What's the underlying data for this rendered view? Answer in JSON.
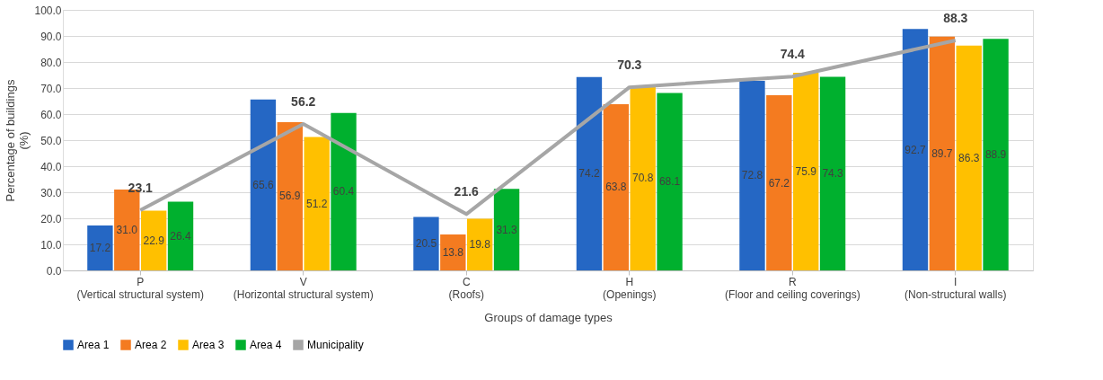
{
  "chart_data": {
    "type": "bar",
    "xlabel": "Groups of damage types",
    "ylabel": "Percentage of buildings\n(%)",
    "categories": [
      "P\n(Vertical structural system)",
      "V\n(Horizontal structural system)",
      "C\n(Roofs)",
      "H\n(Openings)",
      "R\n(Floor and ceiling coverings)",
      "I\n(Non-structural walls)"
    ],
    "series": [
      {
        "name": "Area 1",
        "color": "#2567c4",
        "values": [
          17.2,
          65.6,
          20.5,
          74.2,
          72.8,
          92.7
        ],
        "value_labels": [
          "17.2",
          "65.6",
          "20.5",
          "74.2",
          "72.8",
          "92.7"
        ]
      },
      {
        "name": "Area 2",
        "color": "#f47b20",
        "values": [
          31.0,
          56.9,
          13.8,
          63.8,
          67.2,
          89.7
        ],
        "value_labels": [
          "31.0",
          "56.9",
          "13.8",
          "63.8",
          "67.2",
          "89.7"
        ]
      },
      {
        "name": "Area 3",
        "color": "#ffc000",
        "values": [
          22.9,
          51.2,
          19.8,
          70.8,
          75.9,
          86.3
        ],
        "value_labels": [
          "22.9",
          "51.2",
          "19.8",
          "70.8",
          "75.9",
          "86.3"
        ]
      },
      {
        "name": "Area 4",
        "color": "#00b02e",
        "values": [
          26.4,
          60.4,
          31.3,
          68.1,
          74.3,
          88.9
        ],
        "value_labels": [
          "26.4",
          "60.4",
          "31.3",
          "68.1",
          "74.3",
          "88.9"
        ]
      },
      {
        "name": "Municipality",
        "type": "line",
        "color": "#a6a6a6",
        "values": [
          23.1,
          56.2,
          21.6,
          70.3,
          74.4,
          88.3
        ],
        "value_labels": [
          "23.1",
          "56.2",
          "21.6",
          "70.3",
          "74.4",
          "88.3"
        ]
      }
    ],
    "ylim": [
      0,
      100
    ],
    "yticks": [
      {
        "value": 0,
        "label": "0.0"
      },
      {
        "value": 10,
        "label": "10.0"
      },
      {
        "value": 20,
        "label": "20.0"
      },
      {
        "value": 30,
        "label": "30.0"
      },
      {
        "value": 40,
        "label": "40.0"
      },
      {
        "value": 50,
        "label": "50.0"
      },
      {
        "value": 60,
        "label": "60.0"
      },
      {
        "value": 70,
        "label": "70.0"
      },
      {
        "value": 80,
        "label": "80.0"
      },
      {
        "value": 90,
        "label": "90.0"
      },
      {
        "value": 100,
        "label": "100.0"
      }
    ],
    "grid": "y",
    "legend": "bottom"
  }
}
